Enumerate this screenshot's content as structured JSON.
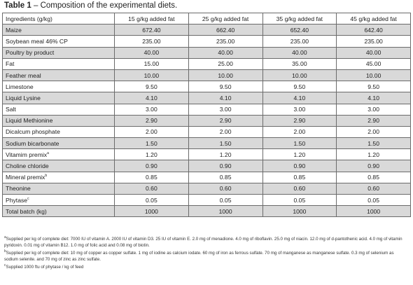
{
  "caption": {
    "label": "Table 1",
    "text": " – Composition of the experimental diets."
  },
  "table": {
    "headers": [
      "Ingredients (g/kg)",
      "15 g/kg added fat",
      "25 g/kg added fat",
      "35 g/kg added fat",
      "45 g/kg added fat"
    ],
    "rows": [
      {
        "name": "Maize",
        "sup": "",
        "values": [
          "672.40",
          "662.40",
          "652.40",
          "642.40"
        ]
      },
      {
        "name": "Soybean meal 46% CP",
        "sup": "",
        "values": [
          "235.00",
          "235.00",
          "235.00",
          "235.00"
        ]
      },
      {
        "name": "Poultry by product",
        "sup": "",
        "values": [
          "40.00",
          "40.00",
          "40.00",
          "40.00"
        ]
      },
      {
        "name": "Fat",
        "sup": "",
        "values": [
          "15.00",
          "25.00",
          "35.00",
          "45.00"
        ]
      },
      {
        "name": "Feather meal",
        "sup": "",
        "values": [
          "10.00",
          "10.00",
          "10.00",
          "10.00"
        ]
      },
      {
        "name": "Limestone",
        "sup": "",
        "values": [
          "9.50",
          "9.50",
          "9.50",
          "9.50"
        ]
      },
      {
        "name": "Liquid Lysine",
        "sup": "",
        "values": [
          "4.10",
          "4.10",
          "4.10",
          "4.10"
        ]
      },
      {
        "name": "Salt",
        "sup": "",
        "values": [
          "3.00",
          "3.00",
          "3.00",
          "3.00"
        ]
      },
      {
        "name": "Liquid Methionine",
        "sup": "",
        "values": [
          "2.90",
          "2.90",
          "2.90",
          "2.90"
        ]
      },
      {
        "name": "Dicalcum phosphate",
        "sup": "",
        "values": [
          "2.00",
          "2.00",
          "2.00",
          "2.00"
        ]
      },
      {
        "name": "Sodium bicarbonate",
        "sup": "",
        "values": [
          "1.50",
          "1.50",
          "1.50",
          "1.50"
        ]
      },
      {
        "name": "Vitamim premix",
        "sup": "a",
        "values": [
          "1.20",
          "1.20",
          "1.20",
          "1.20"
        ]
      },
      {
        "name": "Choline chloride",
        "sup": "",
        "values": [
          "0.90",
          "0.90",
          "0.90",
          "0.90"
        ]
      },
      {
        "name": "Mineral premix",
        "sup": "b",
        "values": [
          "0.85",
          "0.85",
          "0.85",
          "0.85"
        ]
      },
      {
        "name": "Theonine",
        "sup": "",
        "values": [
          "0.60",
          "0.60",
          "0.60",
          "0.60"
        ]
      },
      {
        "name": "Phytase",
        "sup": "c",
        "values": [
          "0.05",
          "0.05",
          "0.05",
          "0.05"
        ]
      },
      {
        "name": "Total batch (kg)",
        "sup": "",
        "values": [
          "1000",
          "1000",
          "1000",
          "1000"
        ]
      }
    ],
    "shade_color": "#d9d9d9"
  },
  "footnotes": [
    {
      "mark": "a",
      "text": "Supplied per kg of complete diet: 7000 IU of vitamin A. 2000 IU of vitamin D3. 25 IU of vitamin E. 2.0 mg of menadione. 4.0 mg of riboflavin. 25.0 mg of niacin. 12.0 mg of d-pantothenic acid. 4.0 mg of vitamin pyridoxin. 0.01 mg of vitamin B12. 1.0 mg of folic acid and 0.08 mg of biotin."
    },
    {
      "mark": "b",
      "text": "Supplied per kg of complete diet: 10 mg of copper as copper sulfate. 1 mg of iodine as calcium iodate. 60 mg of iron as ferrous sulfate. 70 mg of manganese as manganese sulfate. 0.3 mg of selenium as sodium selenite. and 70 mg of zinc as zinc sulfate."
    },
    {
      "mark": "c",
      "text": "Supplied 1000 ftu of phytase / kg of feed"
    }
  ]
}
